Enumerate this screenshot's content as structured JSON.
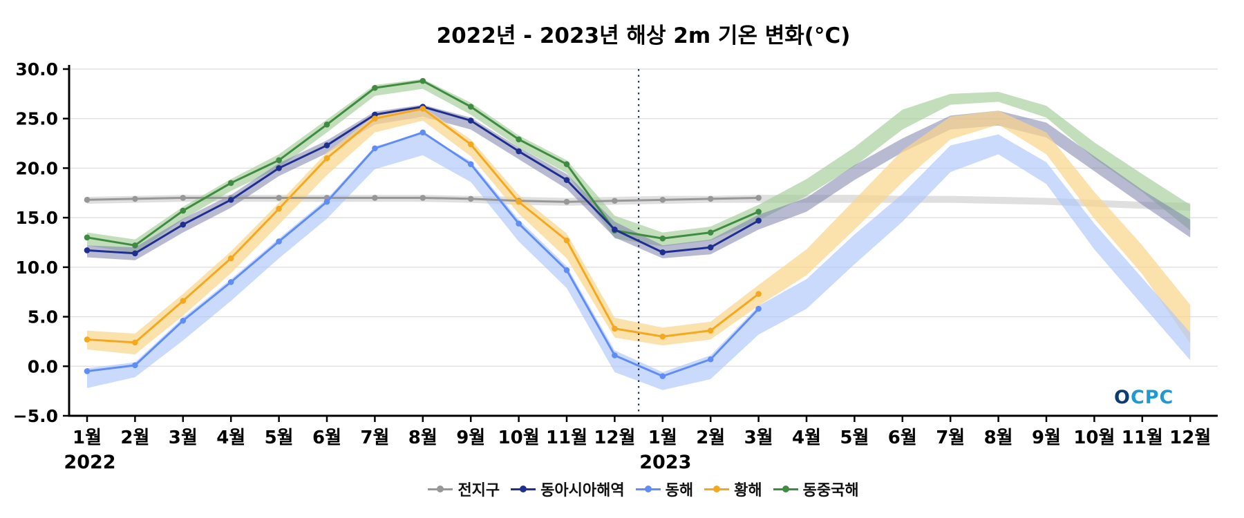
{
  "chart_data": {
    "type": "line",
    "title": "2022년 - 2023년 해상 2m 기온 변화(°C)",
    "x_labels": [
      "1월",
      "2월",
      "3월",
      "4월",
      "5월",
      "6월",
      "7월",
      "8월",
      "9월",
      "10월",
      "11월",
      "12월",
      "1월",
      "2월",
      "3월",
      "4월",
      "5월",
      "6월",
      "7월",
      "8월",
      "9월",
      "10월",
      "11월",
      "12월"
    ],
    "year_labels": [
      {
        "label": "2022",
        "index": 0
      },
      {
        "label": "2023",
        "index": 12
      }
    ],
    "ylim": [
      -5.0,
      30.0
    ],
    "yticks": [
      30.0,
      25.0,
      20.0,
      15.0,
      10.0,
      5.0,
      0.0,
      -5.0
    ],
    "grid": true,
    "legend_position": "bottom",
    "divider_after_index": 11,
    "observed_months": 15,
    "series": [
      {
        "name": "전지구",
        "color": "#979797",
        "band_color": "#bfbfbf",
        "band_opacity": 0.5,
        "values": [
          16.8,
          16.9,
          17.0,
          17.0,
          17.0,
          17.0,
          17.0,
          17.0,
          16.9,
          16.7,
          16.6,
          16.7,
          16.8,
          16.9,
          17.0
        ],
        "band_lower": [
          16.4,
          16.5,
          16.6,
          16.6,
          16.6,
          16.6,
          16.6,
          16.6,
          16.5,
          16.3,
          16.2,
          16.3,
          16.4,
          16.5,
          16.5,
          16.5,
          16.5,
          16.5,
          16.5,
          16.4,
          16.3,
          16.1,
          15.9,
          15.7
        ],
        "band_upper": [
          17.1,
          17.2,
          17.3,
          17.3,
          17.3,
          17.3,
          17.3,
          17.3,
          17.2,
          17.1,
          17.0,
          17.1,
          17.2,
          17.2,
          17.3,
          17.3,
          17.3,
          17.2,
          17.2,
          17.1,
          17.0,
          16.8,
          16.6,
          16.5
        ]
      },
      {
        "name": "동중국해",
        "color": "#3e8b41",
        "band_color": "#a2cc96",
        "band_opacity": 0.65,
        "values": [
          13.0,
          12.2,
          15.7,
          18.5,
          20.8,
          24.4,
          28.1,
          28.8,
          26.2,
          22.9,
          20.4,
          13.7,
          12.9,
          13.5,
          15.6
        ],
        "band_lower": [
          12.2,
          11.4,
          14.8,
          17.7,
          20.0,
          23.6,
          27.3,
          28.0,
          25.4,
          22.1,
          19.5,
          12.9,
          12.1,
          12.7,
          14.7,
          17.2,
          20.2,
          23.9,
          26.4,
          26.7,
          25.1,
          21.0,
          17.6,
          13.7
        ],
        "band_upper": [
          13.5,
          12.8,
          16.1,
          18.9,
          21.4,
          24.9,
          28.4,
          29.0,
          26.6,
          23.3,
          20.8,
          15.2,
          13.5,
          14.1,
          16.3,
          18.9,
          22.1,
          25.9,
          27.5,
          27.7,
          26.3,
          22.6,
          19.4,
          16.3
        ]
      },
      {
        "name": "동아시아해역",
        "color": "#1f2f8f",
        "band_color": "#7d81ad",
        "band_opacity": 0.55,
        "values": [
          11.7,
          11.4,
          14.3,
          16.8,
          20.0,
          22.3,
          25.4,
          26.2,
          24.8,
          21.7,
          18.8,
          13.8,
          11.5,
          12.0,
          14.7
        ],
        "band_lower": [
          11.0,
          10.7,
          13.5,
          16.0,
          19.2,
          21.5,
          24.4,
          25.2,
          23.9,
          20.9,
          17.9,
          13.0,
          10.9,
          11.3,
          13.8,
          15.6,
          18.8,
          21.6,
          23.9,
          24.3,
          23.1,
          19.7,
          16.3,
          13.0
        ],
        "band_upper": [
          12.2,
          12.0,
          14.9,
          17.3,
          20.5,
          22.8,
          25.7,
          26.4,
          25.1,
          22.1,
          19.4,
          14.6,
          12.2,
          12.8,
          15.3,
          17.0,
          20.3,
          23.0,
          25.3,
          25.8,
          24.6,
          21.2,
          17.8,
          14.8
        ]
      },
      {
        "name": "황해",
        "color": "#f4a820",
        "band_color": "#fad489",
        "band_opacity": 0.7,
        "values": [
          2.7,
          2.4,
          6.6,
          10.9,
          15.9,
          21.0,
          25.0,
          26.0,
          22.4,
          16.6,
          12.7,
          3.8,
          3.0,
          3.6,
          7.3
        ],
        "band_lower": [
          1.7,
          1.2,
          5.1,
          9.4,
          14.3,
          19.3,
          23.6,
          24.8,
          21.2,
          15.4,
          10.9,
          2.9,
          2.1,
          2.7,
          6.1,
          9.2,
          13.8,
          18.6,
          22.9,
          24.4,
          21.4,
          14.9,
          9.3,
          2.3
        ],
        "band_upper": [
          3.6,
          3.3,
          7.3,
          11.6,
          16.5,
          21.6,
          25.3,
          26.2,
          22.9,
          17.3,
          13.4,
          4.9,
          3.9,
          4.5,
          8.2,
          11.8,
          16.8,
          21.8,
          25.2,
          25.8,
          23.6,
          17.6,
          12.2,
          6.2
        ]
      },
      {
        "name": "동해",
        "color": "#5f8df5",
        "band_color": "#adc6fb",
        "band_opacity": 0.65,
        "values": [
          -0.5,
          0.1,
          4.6,
          8.5,
          12.6,
          16.6,
          22.0,
          23.6,
          20.4,
          14.4,
          9.7,
          1.1,
          -1.0,
          0.7,
          5.8
        ],
        "band_lower": [
          -2.2,
          -1.1,
          2.6,
          6.6,
          10.9,
          14.9,
          19.9,
          21.3,
          18.6,
          12.6,
          7.9,
          -0.6,
          -2.4,
          -1.3,
          3.2,
          5.8,
          10.3,
          14.6,
          19.6,
          21.4,
          18.4,
          11.8,
          6.2,
          0.6
        ],
        "band_upper": [
          -0.2,
          0.4,
          4.9,
          8.8,
          12.9,
          16.9,
          22.2,
          23.5,
          20.7,
          14.8,
          10.1,
          1.6,
          -0.6,
          1.1,
          6.1,
          8.8,
          13.3,
          17.4,
          22.3,
          23.4,
          20.6,
          14.4,
          8.9,
          3.4
        ]
      }
    ],
    "legend_order": [
      "전지구",
      "동아시아해역",
      "동해",
      "황해",
      "동중국해"
    ]
  },
  "logo": {
    "o": "O",
    "cpc": "CPC"
  },
  "colors": {
    "background": "#ffffff",
    "grid": "#dcdcdc",
    "axis": "#000000",
    "divider": "#26364f"
  }
}
